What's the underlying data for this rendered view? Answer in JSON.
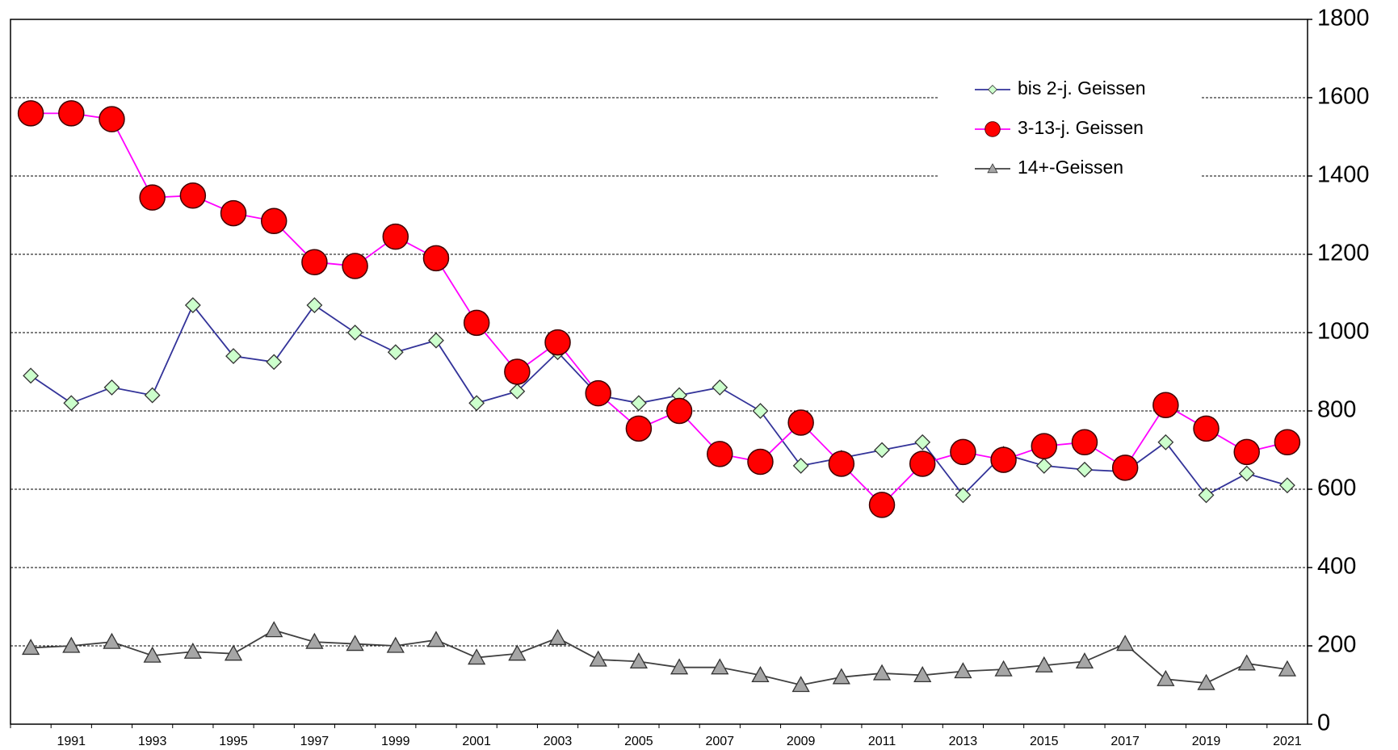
{
  "chart_data": {
    "type": "line",
    "categories": [
      null,
      "1991",
      null,
      "1993",
      null,
      "1995",
      null,
      "1997",
      null,
      "1999",
      null,
      "2001",
      null,
      "2003",
      null,
      "2005",
      null,
      "2007",
      null,
      "2009",
      null,
      "2011",
      null,
      "2013",
      null,
      "2015",
      null,
      "2017",
      null,
      "2019",
      null,
      "2021"
    ],
    "series": [
      {
        "name": "bis 2-j. Geissen",
        "color": "#333399",
        "marker": "diamond",
        "marker_fill": "#ccffcc",
        "values": [
          890,
          820,
          860,
          840,
          1070,
          940,
          925,
          1070,
          1000,
          950,
          980,
          820,
          850,
          950,
          840,
          820,
          840,
          860,
          800,
          660,
          680,
          700,
          720,
          585,
          690,
          660,
          650,
          645,
          720,
          585,
          640,
          610
        ]
      },
      {
        "name": "3-13-j. Geissen",
        "color": "#ff00ff",
        "marker": "circle",
        "marker_fill": "#ff0000",
        "values": [
          1560,
          1560,
          1545,
          1345,
          1350,
          1305,
          1285,
          1180,
          1170,
          1245,
          1190,
          1025,
          900,
          975,
          845,
          755,
          800,
          690,
          670,
          770,
          665,
          560,
          665,
          695,
          675,
          710,
          720,
          655,
          815,
          755,
          695,
          720
        ]
      },
      {
        "name": "14+-Geissen",
        "color": "#404040",
        "marker": "triangle",
        "marker_fill": "#a6a6a6",
        "values": [
          195,
          200,
          210,
          175,
          185,
          180,
          240,
          210,
          205,
          200,
          215,
          170,
          180,
          220,
          165,
          160,
          145,
          145,
          125,
          100,
          120,
          130,
          125,
          135,
          140,
          150,
          160,
          205,
          115,
          105,
          155,
          140
        ]
      }
    ],
    "ylim": [
      0,
      1800
    ],
    "yticks": [
      0,
      200,
      400,
      600,
      800,
      1000,
      1200,
      1400,
      1600,
      1800
    ],
    "y_axis_side": "right",
    "grid": true,
    "legend": "upper right"
  }
}
